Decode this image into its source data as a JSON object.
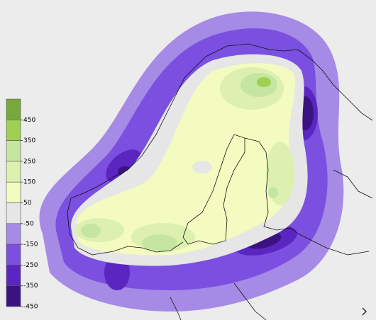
{
  "legend": {
    "items": [
      {
        "label": "450",
        "color": "#77a83a"
      },
      {
        "label": "350",
        "color": "#9fd052"
      },
      {
        "label": "250",
        "color": "#c4e6a0"
      },
      {
        "label": "150",
        "color": "#ddf0b0"
      },
      {
        "label": "50",
        "color": "#f4fbc0"
      },
      {
        "label": "-50",
        "color": "#e6e6e6"
      },
      {
        "label": "-150",
        "color": "#a58ae6"
      },
      {
        "label": "-250",
        "color": "#7b4fe0"
      },
      {
        "label": "-350",
        "color": "#5a25c0"
      },
      {
        "label": "-450",
        "color": "#3b1380"
      }
    ]
  }
}
